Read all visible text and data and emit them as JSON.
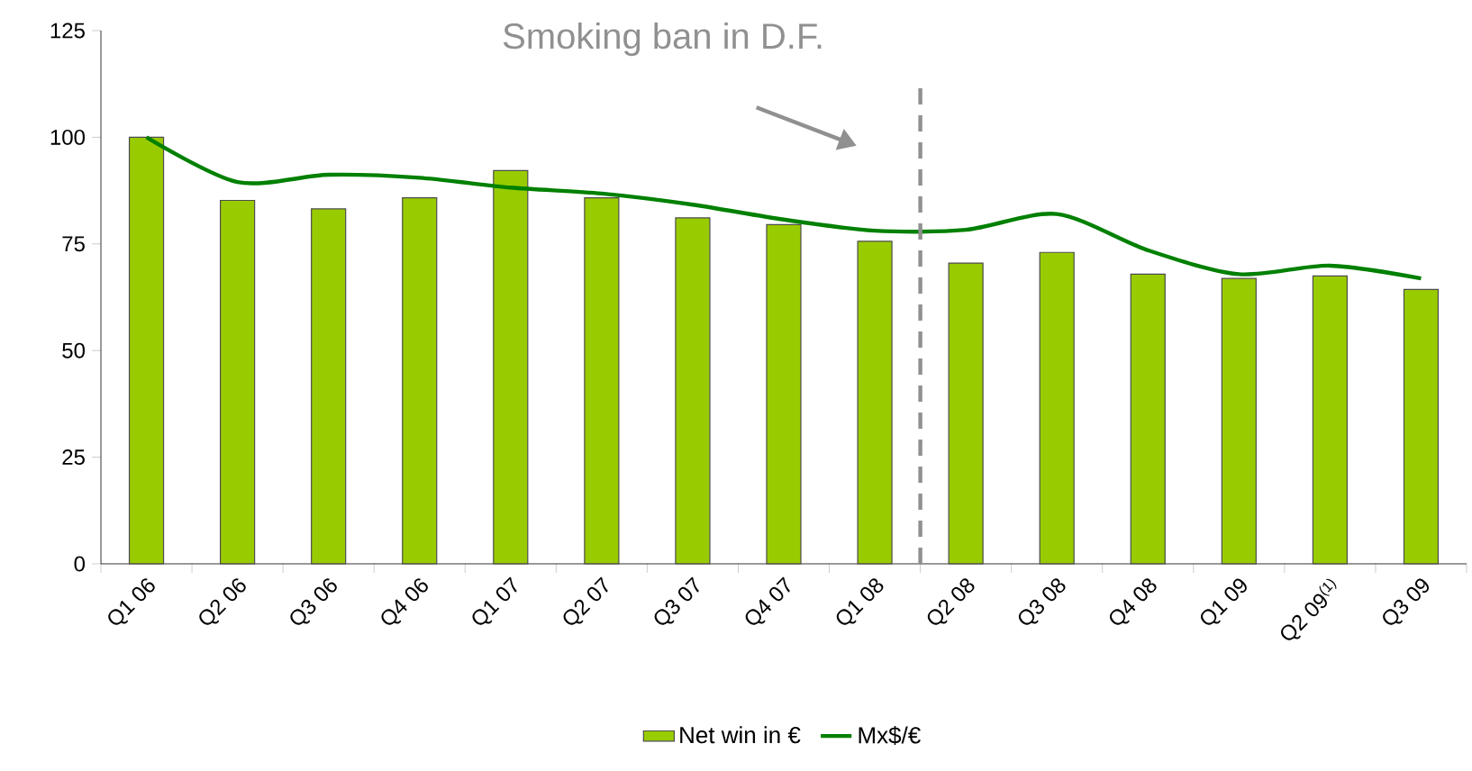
{
  "chart_data": {
    "type": "bar",
    "categories": [
      "Q1 06",
      "Q2 06",
      "Q3 06",
      "Q4 06",
      "Q1 07",
      "Q2 07",
      "Q3 07",
      "Q4 07",
      "Q1 08",
      "Q2 08",
      "Q3 08",
      "Q4 08",
      "Q1 09",
      "Q2 09$^{(1)}$",
      "Q3 09"
    ],
    "series": [
      {
        "name": "Net win in €",
        "color": "#99cc00",
        "values": [
          100,
          85.2,
          83.2,
          85.8,
          92.2,
          85.8,
          81.1,
          79.5,
          75.6,
          70.5,
          73,
          67.9,
          66.9,
          67.5,
          64.3
        ]
      },
      {
        "name": "Mx$/€",
        "type": "line",
        "color": "#008000",
        "values": [
          100,
          89.5,
          91.2,
          90.5,
          88.2,
          86.8,
          84.2,
          80.7,
          78.1,
          78.3,
          82,
          73.5,
          67.9,
          69.9,
          66.9
        ]
      }
    ],
    "ylim": [
      0,
      125
    ],
    "yticks": [
      0,
      25,
      50,
      75,
      100,
      125
    ],
    "annotations": [
      "Smoking ban in D.F."
    ],
    "legend": "bottom",
    "grid": false,
    "marker": "none"
  }
}
